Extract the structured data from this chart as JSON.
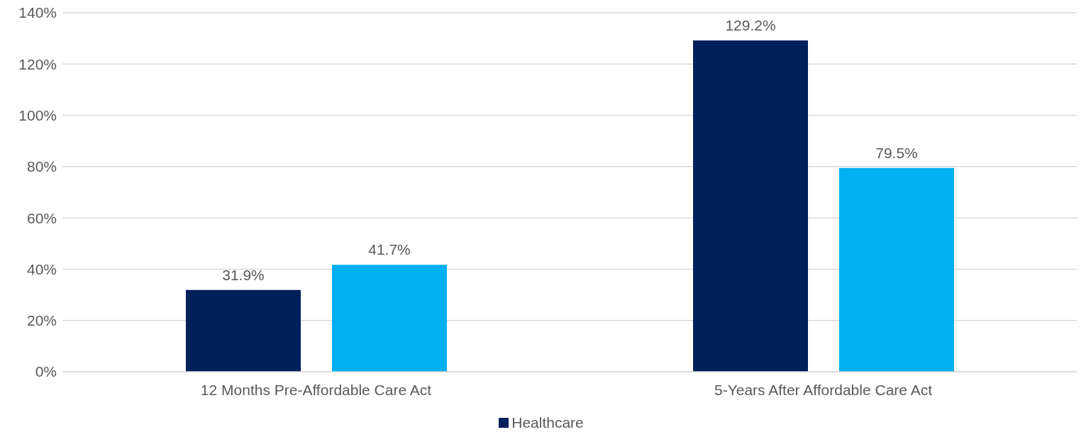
{
  "chart_data": {
    "type": "bar",
    "categories": [
      "12 Months Pre-Affordable Care Act",
      "5-Years After Affordable Care Act"
    ],
    "series": [
      {
        "name": "Healthcare",
        "color": "#00205b",
        "values": [
          31.9,
          129.2
        ],
        "value_labels": [
          "31.9%",
          "129.2%"
        ]
      },
      {
        "color": "#00b0f0",
        "values": [
          41.7,
          79.5
        ],
        "value_labels": [
          "41.7%",
          "79.5%"
        ]
      }
    ],
    "ylim": [
      0,
      140
    ],
    "yticks": [
      {
        "value": 0,
        "label": "0%"
      },
      {
        "value": 20,
        "label": "20%"
      },
      {
        "value": 40,
        "label": "40%"
      },
      {
        "value": 60,
        "label": "60%"
      },
      {
        "value": 80,
        "label": "80%"
      },
      {
        "value": 100,
        "label": "100%"
      },
      {
        "value": 120,
        "label": "120%"
      },
      {
        "value": 140,
        "label": "140%"
      }
    ],
    "grid": "y",
    "legend": "bottom"
  }
}
